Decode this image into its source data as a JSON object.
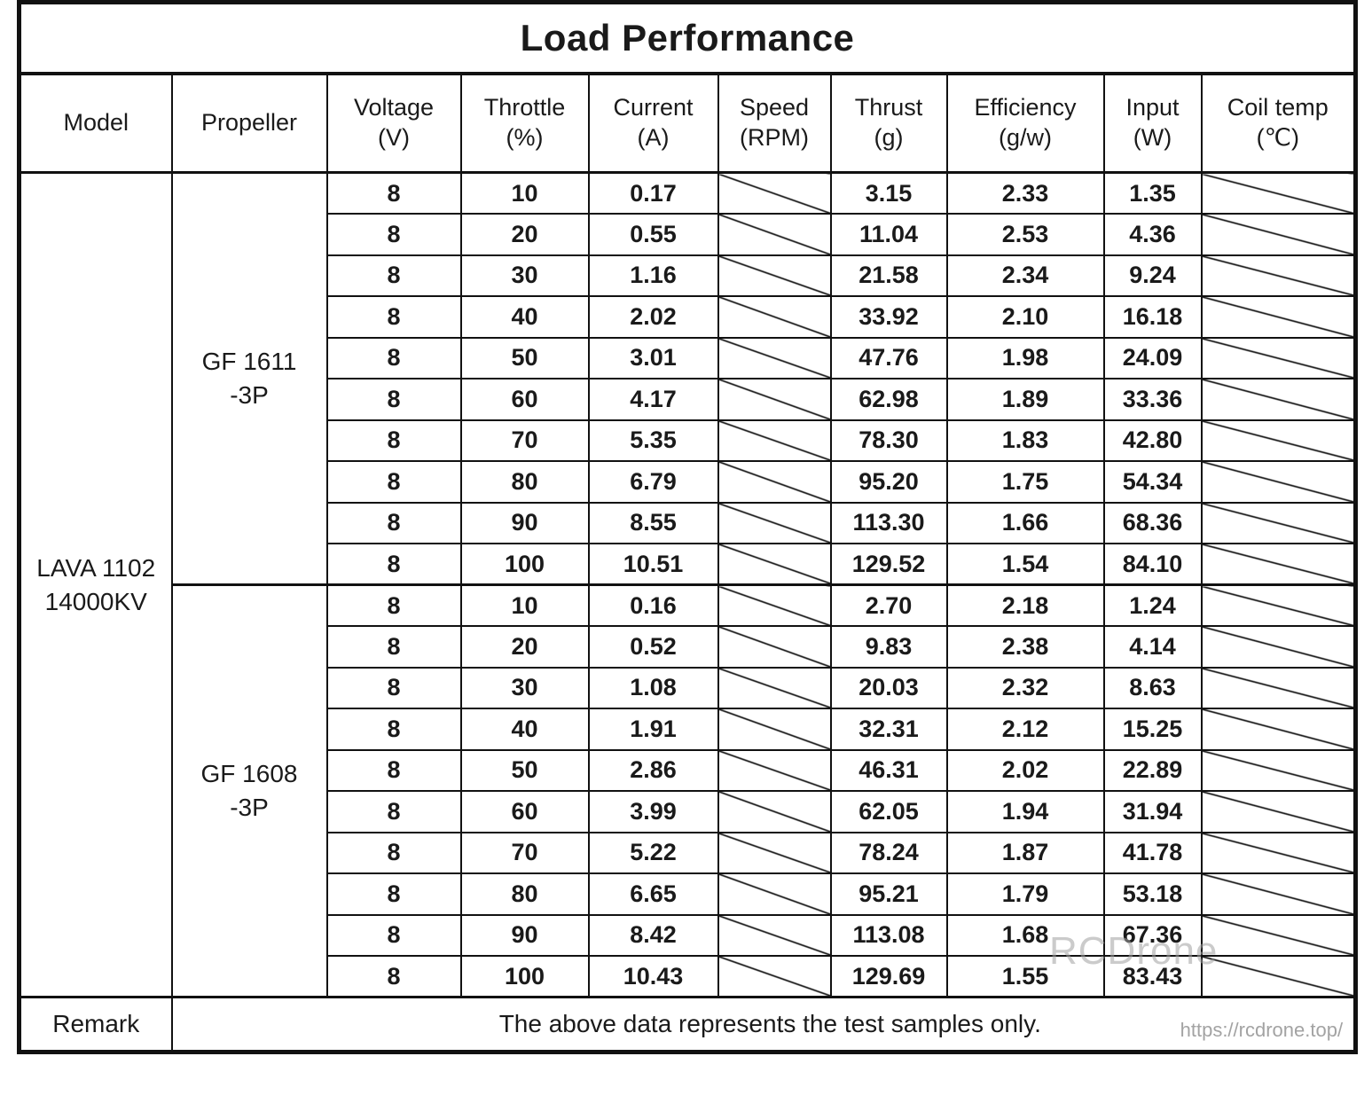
{
  "title": "Load Performance",
  "columns": [
    {
      "label": "Model",
      "unit": ""
    },
    {
      "label": "Propeller",
      "unit": ""
    },
    {
      "label": "Voltage",
      "unit": "(V)"
    },
    {
      "label": "Throttle",
      "unit": "(%)"
    },
    {
      "label": "Current",
      "unit": "(A)"
    },
    {
      "label": "Speed",
      "unit": "(RPM)"
    },
    {
      "label": "Thrust",
      "unit": "(g)"
    },
    {
      "label": "Efficiency",
      "unit": "(g/w)"
    },
    {
      "label": "Input",
      "unit": "(W)"
    },
    {
      "label": "Coil temp",
      "unit": "(℃)"
    }
  ],
  "model": "LAVA 1102\n14000KV",
  "groups": [
    {
      "propeller": "GF 1611\n-3P",
      "rows": [
        {
          "voltage": "8",
          "throttle": "10",
          "current": "0.17",
          "speed": "",
          "thrust": "3.15",
          "efficiency": "2.33",
          "input": "1.35",
          "coil_temp": ""
        },
        {
          "voltage": "8",
          "throttle": "20",
          "current": "0.55",
          "speed": "",
          "thrust": "11.04",
          "efficiency": "2.53",
          "input": "4.36",
          "coil_temp": ""
        },
        {
          "voltage": "8",
          "throttle": "30",
          "current": "1.16",
          "speed": "",
          "thrust": "21.58",
          "efficiency": "2.34",
          "input": "9.24",
          "coil_temp": ""
        },
        {
          "voltage": "8",
          "throttle": "40",
          "current": "2.02",
          "speed": "",
          "thrust": "33.92",
          "efficiency": "2.10",
          "input": "16.18",
          "coil_temp": ""
        },
        {
          "voltage": "8",
          "throttle": "50",
          "current": "3.01",
          "speed": "",
          "thrust": "47.76",
          "efficiency": "1.98",
          "input": "24.09",
          "coil_temp": ""
        },
        {
          "voltage": "8",
          "throttle": "60",
          "current": "4.17",
          "speed": "",
          "thrust": "62.98",
          "efficiency": "1.89",
          "input": "33.36",
          "coil_temp": ""
        },
        {
          "voltage": "8",
          "throttle": "70",
          "current": "5.35",
          "speed": "",
          "thrust": "78.30",
          "efficiency": "1.83",
          "input": "42.80",
          "coil_temp": ""
        },
        {
          "voltage": "8",
          "throttle": "80",
          "current": "6.79",
          "speed": "",
          "thrust": "95.20",
          "efficiency": "1.75",
          "input": "54.34",
          "coil_temp": ""
        },
        {
          "voltage": "8",
          "throttle": "90",
          "current": "8.55",
          "speed": "",
          "thrust": "113.30",
          "efficiency": "1.66",
          "input": "68.36",
          "coil_temp": ""
        },
        {
          "voltage": "8",
          "throttle": "100",
          "current": "10.51",
          "speed": "",
          "thrust": "129.52",
          "efficiency": "1.54",
          "input": "84.10",
          "coil_temp": ""
        }
      ]
    },
    {
      "propeller": "GF 1608\n-3P",
      "rows": [
        {
          "voltage": "8",
          "throttle": "10",
          "current": "0.16",
          "speed": "",
          "thrust": "2.70",
          "efficiency": "2.18",
          "input": "1.24",
          "coil_temp": ""
        },
        {
          "voltage": "8",
          "throttle": "20",
          "current": "0.52",
          "speed": "",
          "thrust": "9.83",
          "efficiency": "2.38",
          "input": "4.14",
          "coil_temp": ""
        },
        {
          "voltage": "8",
          "throttle": "30",
          "current": "1.08",
          "speed": "",
          "thrust": "20.03",
          "efficiency": "2.32",
          "input": "8.63",
          "coil_temp": ""
        },
        {
          "voltage": "8",
          "throttle": "40",
          "current": "1.91",
          "speed": "",
          "thrust": "32.31",
          "efficiency": "2.12",
          "input": "15.25",
          "coil_temp": ""
        },
        {
          "voltage": "8",
          "throttle": "50",
          "current": "2.86",
          "speed": "",
          "thrust": "46.31",
          "efficiency": "2.02",
          "input": "22.89",
          "coil_temp": ""
        },
        {
          "voltage": "8",
          "throttle": "60",
          "current": "3.99",
          "speed": "",
          "thrust": "62.05",
          "efficiency": "1.94",
          "input": "31.94",
          "coil_temp": ""
        },
        {
          "voltage": "8",
          "throttle": "70",
          "current": "5.22",
          "speed": "",
          "thrust": "78.24",
          "efficiency": "1.87",
          "input": "41.78",
          "coil_temp": ""
        },
        {
          "voltage": "8",
          "throttle": "80",
          "current": "6.65",
          "speed": "",
          "thrust": "95.21",
          "efficiency": "1.79",
          "input": "53.18",
          "coil_temp": ""
        },
        {
          "voltage": "8",
          "throttle": "90",
          "current": "8.42",
          "speed": "",
          "thrust": "113.08",
          "efficiency": "1.68",
          "input": "67.36",
          "coil_temp": ""
        },
        {
          "voltage": "8",
          "throttle": "100",
          "current": "10.43",
          "speed": "",
          "thrust": "129.69",
          "efficiency": "1.55",
          "input": "83.43",
          "coil_temp": ""
        }
      ]
    }
  ],
  "remark": {
    "label": "Remark",
    "text": "The above data represents the test samples only.",
    "url": "https://rcdrone.top/"
  },
  "watermark": "RCDrone",
  "colors": {
    "border": "#111111",
    "text": "#1a1a1a",
    "watermark": "#a0a0a0",
    "url_text": "#a3a3a3"
  }
}
